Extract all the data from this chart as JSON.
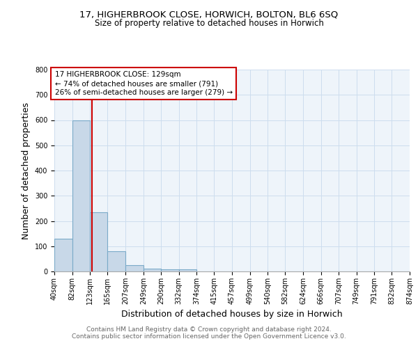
{
  "title1": "17, HIGHERBROOK CLOSE, HORWICH, BOLTON, BL6 6SQ",
  "title2": "Size of property relative to detached houses in Horwich",
  "xlabel": "Distribution of detached houses by size in Horwich",
  "ylabel": "Number of detached properties",
  "footer1": "Contains HM Land Registry data © Crown copyright and database right 2024.",
  "footer2": "Contains public sector information licensed under the Open Government Licence v3.0.",
  "bin_edges": [
    40,
    82,
    123,
    165,
    207,
    249,
    290,
    332,
    374,
    415,
    457,
    499,
    540,
    582,
    624,
    666,
    707,
    749,
    791,
    832,
    874
  ],
  "bin_labels": [
    "40sqm",
    "82sqm",
    "123sqm",
    "165sqm",
    "207sqm",
    "249sqm",
    "290sqm",
    "332sqm",
    "374sqm",
    "415sqm",
    "457sqm",
    "499sqm",
    "540sqm",
    "582sqm",
    "624sqm",
    "666sqm",
    "707sqm",
    "749sqm",
    "791sqm",
    "832sqm",
    "874sqm"
  ],
  "bar_heights": [
    130,
    600,
    235,
    80,
    25,
    10,
    8,
    8,
    0,
    0,
    0,
    0,
    0,
    0,
    0,
    0,
    0,
    0,
    0,
    0
  ],
  "bar_color": "#c8d8e8",
  "bar_edge_color": "#7aaac8",
  "property_size": 129,
  "vline_color": "#cc0000",
  "annotation_line1": "17 HIGHERBROOK CLOSE: 129sqm",
  "annotation_line2": "← 74% of detached houses are smaller (791)",
  "annotation_line3": "26% of semi-detached houses are larger (279) →",
  "annotation_box_color": "#cc0000",
  "ylim": [
    0,
    800
  ],
  "yticks": [
    0,
    100,
    200,
    300,
    400,
    500,
    600,
    700,
    800
  ],
  "grid_color": "#ccddee",
  "bg_color": "#eef4fa",
  "title_fontsize": 9.5,
  "subtitle_fontsize": 8.5,
  "axis_label_fontsize": 9,
  "tick_fontsize": 7,
  "footer_fontsize": 6.5,
  "annotation_fontsize": 7.5
}
